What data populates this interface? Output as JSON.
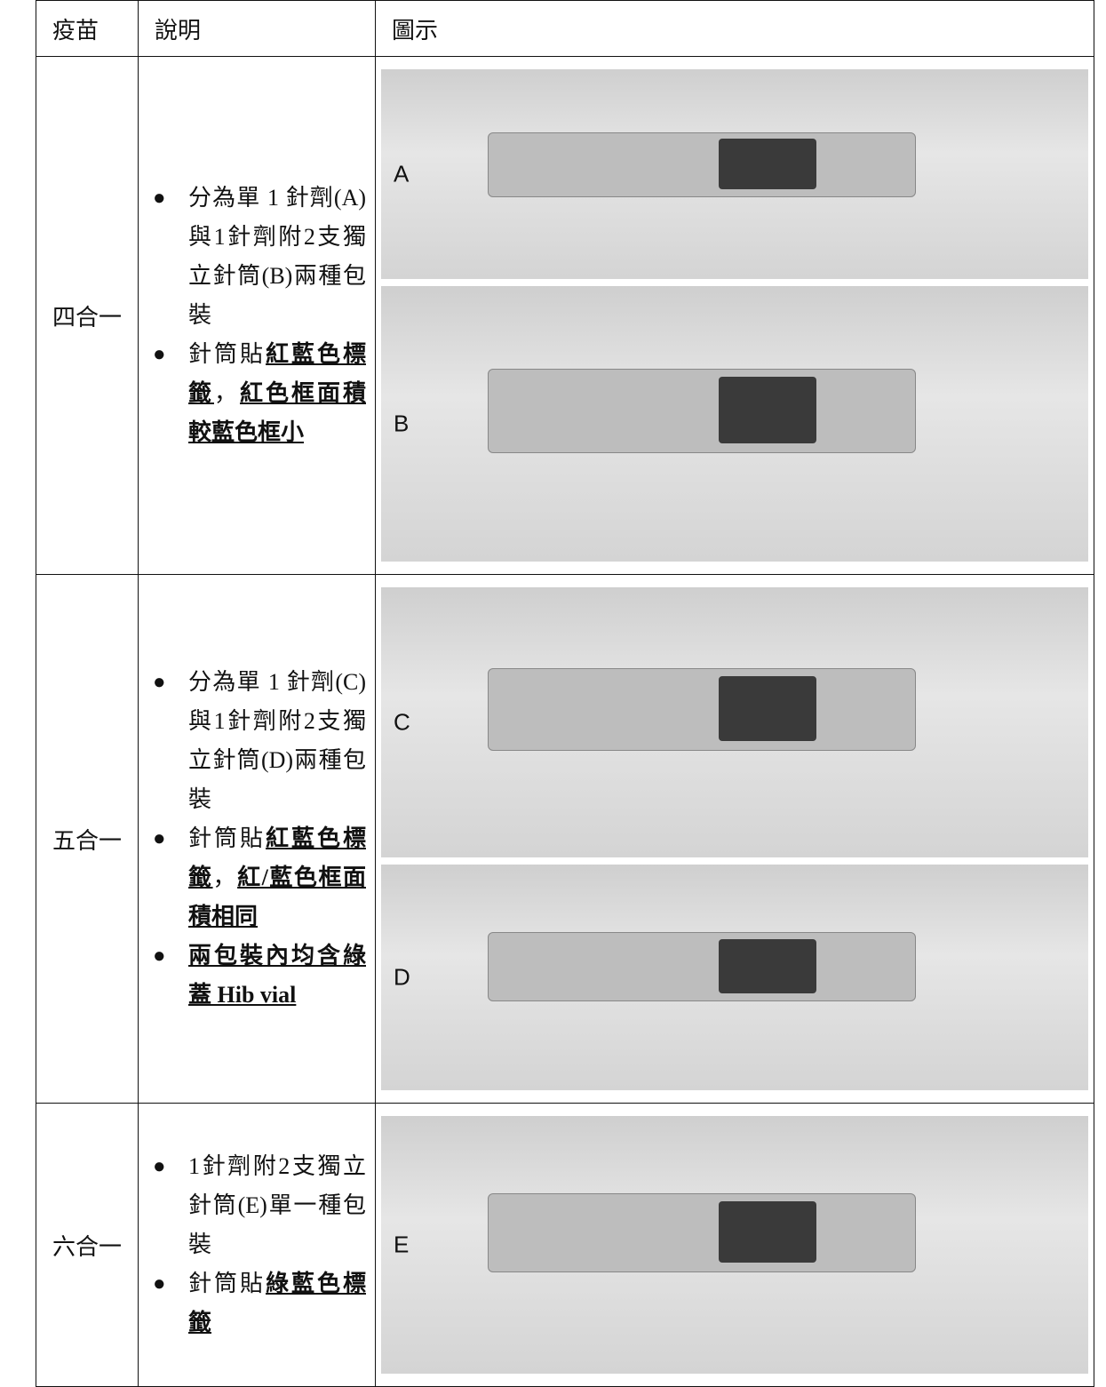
{
  "table": {
    "header": [
      "疫苗",
      "說明",
      "圖示"
    ],
    "rows": [
      {
        "vaccine": "四合一",
        "bullets": [
          [
            {
              "text": "分為單 1 針劑(A)與1針劑附2支獨立針筒(B)兩種包裝",
              "underline": false
            }
          ],
          [
            {
              "text": "針筒貼",
              "underline": false
            },
            {
              "text": "紅藍色標籤",
              "underline": true
            },
            {
              "text": "，",
              "underline": false
            },
            {
              "text": "紅色框面積較藍色框小",
              "underline": true
            }
          ]
        ],
        "images": [
          {
            "label": "A"
          },
          {
            "label": "B"
          }
        ]
      },
      {
        "vaccine": "五合一",
        "bullets": [
          [
            {
              "text": "分為單 1 針劑(C)與1針劑附2支獨立針筒(D)兩種包裝",
              "underline": false
            }
          ],
          [
            {
              "text": "針筒貼",
              "underline": false
            },
            {
              "text": "紅藍色標籤",
              "underline": true
            },
            {
              "text": "，",
              "underline": false
            },
            {
              "text": "紅/藍色框面積相同",
              "underline": true
            }
          ],
          [
            {
              "text": "兩包裝內均含綠蓋 Hib vial",
              "underline": true
            }
          ]
        ],
        "images": [
          {
            "label": "C"
          },
          {
            "label": "D"
          }
        ]
      },
      {
        "vaccine": "六合一",
        "bullets": [
          [
            {
              "text": "1針劑附2支獨立針筒(E)單一種包裝",
              "underline": false
            }
          ],
          [
            {
              "text": "針筒貼",
              "underline": false
            },
            {
              "text": "綠藍色標籤",
              "underline": true
            }
          ]
        ],
        "images": [
          {
            "label": "E"
          }
        ]
      }
    ]
  }
}
